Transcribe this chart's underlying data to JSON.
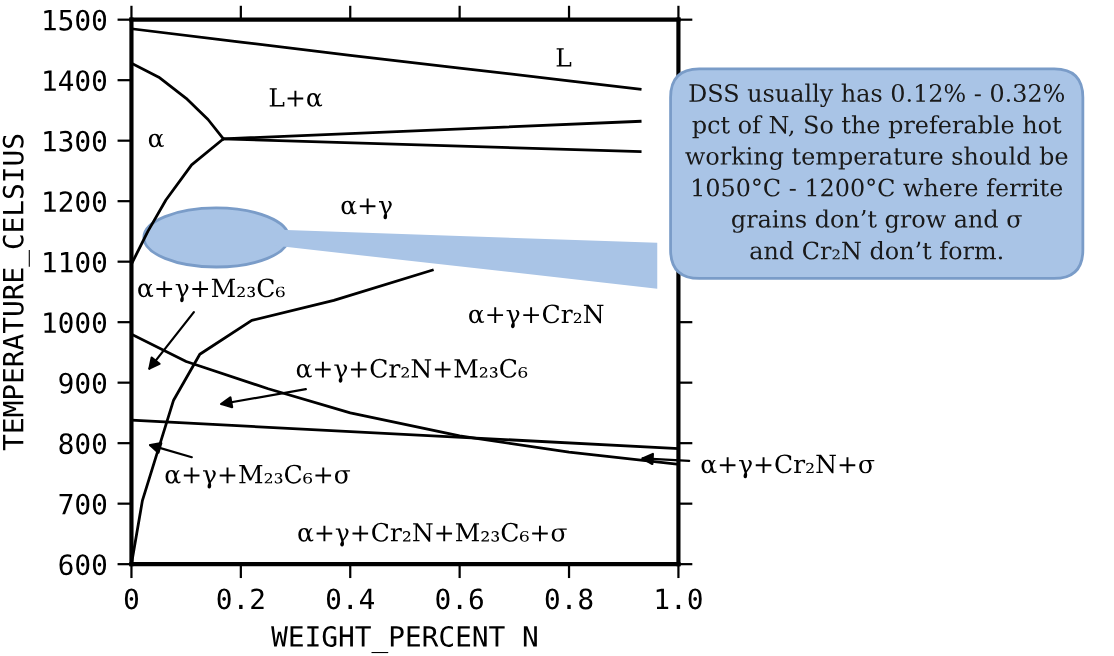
{
  "chart_data": {
    "type": "line",
    "xlabel": "WEIGHT_PERCENT N",
    "ylabel": "TEMPERATURE_CELSIUS",
    "xlim": [
      0,
      1
    ],
    "ylim": [
      600,
      1500
    ],
    "xticks": [
      0,
      0.2,
      0.4,
      0.6,
      0.8,
      {
        "value": 1,
        "label": "1.0"
      }
    ],
    "yticks": [
      600,
      700,
      800,
      900,
      1000,
      1100,
      1200,
      1300,
      1400,
      1500
    ],
    "grid": false,
    "marker": "none",
    "line_style": "solid",
    "series": [
      {
        "color": "#000000",
        "x": [
          0,
          0.2,
          0.4,
          0.6,
          0.8,
          0.93
        ],
        "values": [
          1485,
          1463,
          1441,
          1420,
          1399,
          1385
        ]
      },
      {
        "color": "#000000",
        "x": [
          0,
          0.05,
          0.1,
          0.14,
          0.168
        ],
        "values": [
          1428,
          1405,
          1370,
          1335,
          1303
        ]
      },
      {
        "color": "#000000",
        "x": [
          0,
          0.03,
          0.063,
          0.11,
          0.168
        ],
        "values": [
          1096,
          1150,
          1202,
          1260,
          1303
        ]
      },
      {
        "color": "#000000",
        "x": [
          0.168,
          0.93
        ],
        "values": [
          1303,
          1332
        ]
      },
      {
        "color": "#000000",
        "x": [
          0.168,
          0.93
        ],
        "values": [
          1303,
          1282
        ]
      },
      {
        "color": "#000000",
        "x": [
          0,
          0.02,
          0.077,
          0.125,
          0.22,
          0.37,
          0.55
        ],
        "values": [
          600,
          705,
          871,
          947,
          1003,
          1036,
          1086
        ]
      },
      {
        "color": "#000000",
        "x": [
          0,
          0.1,
          0.25,
          0.4,
          0.6,
          0.8,
          1.0
        ],
        "values": [
          980,
          935,
          890,
          850,
          812,
          785,
          765
        ]
      },
      {
        "color": "#000000",
        "x": [
          0,
          1.0
        ],
        "values": [
          838,
          791
        ]
      }
    ],
    "annotations": [
      "L",
      "L+α",
      "α",
      "α+γ",
      "α+γ+Cr₂N",
      "α+γ+M₂₃C₆",
      "α+γ+Cr₂N+M₂₃C₆",
      "α+γ+M₂₃C₆+σ",
      "α+γ+Cr₂N+σ",
      "α+γ+Cr₂N+M₂₃C₆+σ",
      "DSS usually has 0.12% - 0.32%\npct of N, So the preferable hot\nworking temperature should be\n1050°C - 1200°C where ferrite\ngrains don’t grow and σ\nand Cr₂N don’t form."
    ]
  }
}
